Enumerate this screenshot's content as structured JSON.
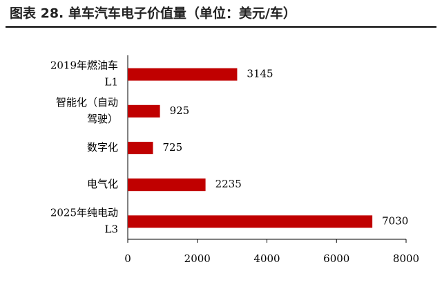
{
  "chart_data": {
    "type": "bar",
    "orientation": "horizontal",
    "title": "图表 28. 单车汽车电子价值量（单位：美元/车）",
    "categories": [
      [
        "2019年燃油车",
        "L1"
      ],
      [
        "智能化（自动",
        "驾驶）"
      ],
      [
        "数字化"
      ],
      [
        "电气化"
      ],
      [
        "2025年纯电动",
        "L3"
      ]
    ],
    "values": [
      3145,
      925,
      725,
      2235,
      7030
    ],
    "color": "#c00000",
    "xlim": [
      0,
      8000
    ],
    "xticks": [
      0,
      2000,
      4000,
      6000,
      8000
    ],
    "grid": false
  }
}
